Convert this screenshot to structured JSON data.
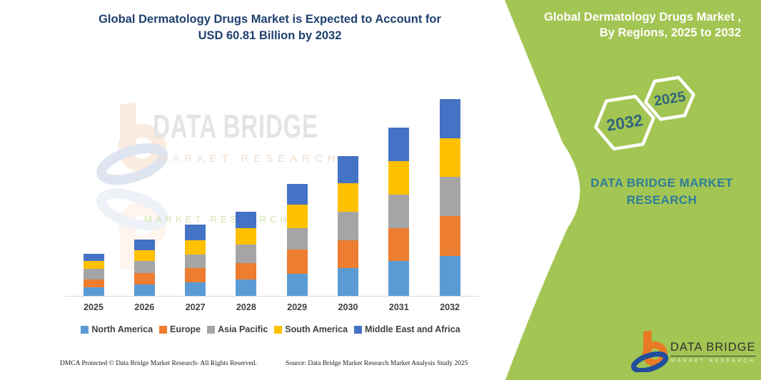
{
  "title": {
    "line1": "Global Dermatology Drugs Market is Expected to Account for",
    "line2": "USD 60.81 Billion by 2032"
  },
  "chart_data": {
    "type": "bar",
    "stacked": true,
    "title": "Global Dermatology Drugs Market is Expected to Account for USD 60.81 Billion by 2032",
    "units": "USD Billion",
    "categories": [
      "2025",
      "2026",
      "2027",
      "2028",
      "2029",
      "2030",
      "2031",
      "2032"
    ],
    "series": [
      {
        "name": "North America",
        "color": "#5b9bd5",
        "values": [
          2.6,
          3.5,
          4.1,
          5.0,
          6.8,
          8.5,
          10.7,
          12.4
        ]
      },
      {
        "name": "Europe",
        "color": "#ed7d31",
        "values": [
          2.4,
          3.5,
          4.6,
          5.2,
          7.6,
          8.7,
          10.3,
          12.2
        ]
      },
      {
        "name": "Asia Pacific",
        "color": "#a5a5a5",
        "values": [
          3.3,
          3.7,
          4.1,
          5.7,
          6.5,
          8.9,
          10.2,
          12.2
        ]
      },
      {
        "name": "South America",
        "color": "#ffc000",
        "values": [
          2.4,
          3.5,
          4.4,
          5.0,
          7.2,
          8.7,
          10.5,
          12.0
        ]
      },
      {
        "name": "Middle East and Africa",
        "color": "#4472c4",
        "values": [
          2.2,
          3.3,
          4.8,
          5.0,
          6.5,
          8.5,
          10.4,
          12.0
        ]
      }
    ],
    "ylim": [
      0,
      65
    ],
    "grid": false,
    "legend_position": "bottom"
  },
  "watermark": {
    "text1": "DATA BRIDGE",
    "text2": "MARKET RESEARCH",
    "text3": "MARKET RESEARCH"
  },
  "footer": {
    "left": "DMCA Protected © Data Bridge Market Research- All Rights Reserved.",
    "right": "Source: Data Bridge Market Research Market Analysis Study 2025"
  },
  "side_panel": {
    "heading": "Global Dermatology Drugs Market , By Regions, 2025 to 2032",
    "hex_end_year": "2032",
    "hex_start_year": "2025",
    "brand_line1": "DATA BRIDGE MARKET",
    "brand_line2": "RESEARCH",
    "logo_name": "DATA BRIDGE",
    "logo_sub": "MARKET  RESEARCH",
    "colors": {
      "green": "#a3c553",
      "teal": "#2e7d9a",
      "hex_text": "#33657e",
      "navy_title": "#1f4070"
    }
  }
}
